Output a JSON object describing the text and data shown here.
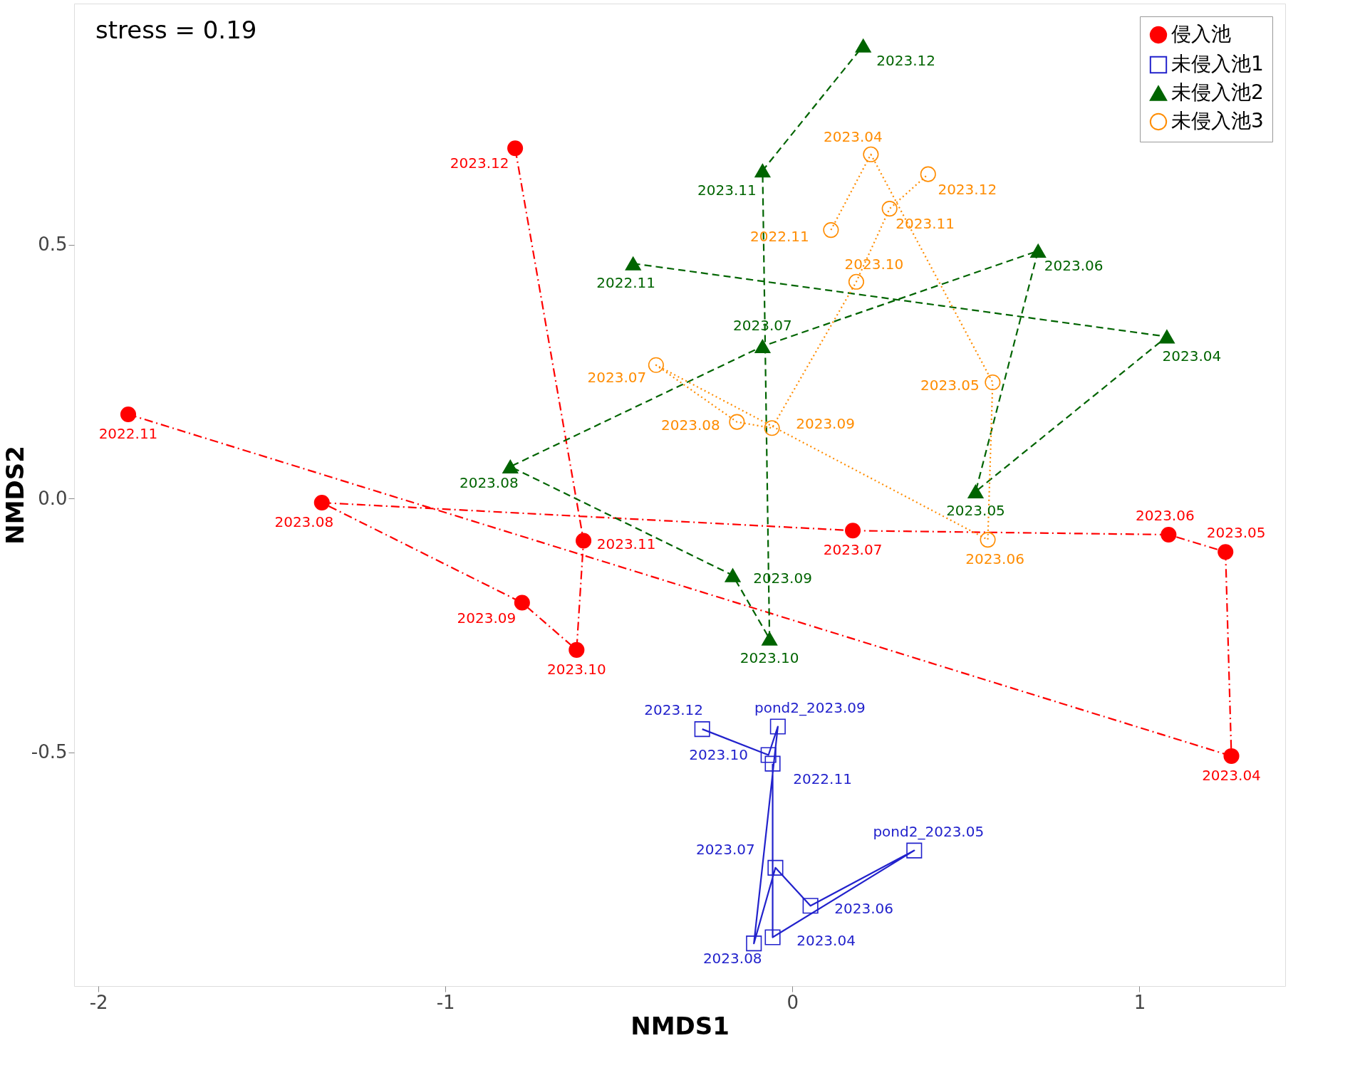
{
  "chart_data": {
    "type": "line",
    "xlabel": "NMDS1",
    "ylabel": "NMDS2",
    "annotations": [
      "stress = 0.19",
      {
        "text": "2022.11",
        "x": -1.914,
        "y": 0.166
      },
      {
        "text": "2023.04",
        "x": 1.265,
        "y": -0.507
      },
      {
        "text": "2023.05",
        "x": 1.248,
        "y": -0.105
      },
      {
        "text": "2023.06",
        "x": 1.084,
        "y": -0.071
      },
      {
        "text": "2023.07",
        "x": 0.174,
        "y": -0.063
      },
      {
        "text": "2023.08",
        "x": -1.356,
        "y": -0.008
      },
      {
        "text": "2023.09",
        "x": -0.779,
        "y": -0.205
      },
      {
        "text": "2023.10",
        "x": -0.622,
        "y": -0.298
      },
      {
        "text": "2023.11",
        "x": -0.602,
        "y": -0.083
      },
      {
        "text": "2023.12",
        "x": -0.799,
        "y": 0.69
      },
      {
        "text": "2022.11",
        "x": -0.057,
        "y": -0.522
      },
      {
        "text": "2023.04",
        "x": -0.057,
        "y": -0.864
      },
      {
        "text": "pond2_2023.05",
        "x": 0.351,
        "y": -0.693
      },
      {
        "text": "2023.06",
        "x": 0.052,
        "y": -0.802
      },
      {
        "text": "2023.07",
        "x": -0.049,
        "y": -0.727
      },
      {
        "text": "2023.08",
        "x": -0.111,
        "y": -0.876
      },
      {
        "text": "pond2_2023.09",
        "x": -0.042,
        "y": -0.449
      },
      {
        "text": "2023.10",
        "x": -0.069,
        "y": -0.505
      },
      {
        "text": "2023.12",
        "x": -0.26,
        "y": -0.454
      },
      {
        "text": "2022.11",
        "x": -0.459,
        "y": 0.463
      },
      {
        "text": "2023.04",
        "x": 1.079,
        "y": 0.319
      },
      {
        "text": "2023.05",
        "x": 0.528,
        "y": 0.014
      },
      {
        "text": "2023.06",
        "x": 0.708,
        "y": 0.488
      },
      {
        "text": "2023.07",
        "x": -0.086,
        "y": 0.3
      },
      {
        "text": "2023.08",
        "x": -0.813,
        "y": 0.063
      },
      {
        "text": "2023.09",
        "x": -0.172,
        "y": -0.151
      },
      {
        "text": "2023.10",
        "x": -0.066,
        "y": -0.276
      },
      {
        "text": "2023.11",
        "x": -0.086,
        "y": 0.646
      },
      {
        "text": "2023.12",
        "x": 0.204,
        "y": 0.892
      },
      {
        "text": "2022.11",
        "x": 0.111,
        "y": 0.529
      },
      {
        "text": "2023.04",
        "x": 0.226,
        "y": 0.678
      },
      {
        "text": "2023.05",
        "x": 0.577,
        "y": 0.229
      },
      {
        "text": "2023.06",
        "x": 0.563,
        "y": -0.081
      },
      {
        "text": "2023.07",
        "x": -0.393,
        "y": 0.263
      },
      {
        "text": "2023.08",
        "x": -0.16,
        "y": 0.151
      },
      {
        "text": "2023.09",
        "x": -0.059,
        "y": 0.139
      },
      {
        "text": "2023.10",
        "x": 0.184,
        "y": 0.427
      },
      {
        "text": "2023.11",
        "x": 0.28,
        "y": 0.571
      },
      {
        "text": "2023.12",
        "x": 0.391,
        "y": 0.639
      }
    ],
    "xlim": [
      -2.07,
      1.42
    ],
    "ylim": [
      -0.96,
      0.975
    ],
    "xticks": [
      -2,
      -1,
      0,
      1
    ],
    "yticks": [
      -0.5,
      {
        "value": 0,
        "label": "0.0"
      },
      0.5
    ],
    "grid": false,
    "legend": "top right",
    "series": [
      {
        "name": "侵入池",
        "color": "#ff0000",
        "marker": "circle",
        "line_style": "dashdot",
        "x": [
          -1.914,
          1.265,
          1.248,
          1.084,
          0.174,
          -1.356,
          -0.779,
          -0.622,
          -0.602,
          -0.799
        ],
        "values": [
          0.166,
          -0.507,
          -0.105,
          -0.071,
          -0.063,
          -0.008,
          -0.205,
          -0.298,
          -0.083,
          0.69
        ]
      },
      {
        "name": "未侵入池1",
        "color": "#2222cc",
        "marker": "square",
        "line_style": "solid",
        "x": [
          -0.057,
          -0.057,
          0.351,
          0.052,
          -0.049,
          -0.111,
          -0.042,
          -0.069,
          -0.26
        ],
        "values": [
          -0.522,
          -0.864,
          -0.693,
          -0.802,
          -0.727,
          -0.876,
          -0.449,
          -0.505,
          -0.454
        ]
      },
      {
        "name": "未侵入池2",
        "color": "#006400",
        "marker": "triangle",
        "line_style": "dashed",
        "x": [
          -0.459,
          1.079,
          0.528,
          0.708,
          -0.086,
          -0.813,
          -0.172,
          -0.066,
          -0.086,
          0.204
        ],
        "values": [
          0.463,
          0.319,
          0.014,
          0.488,
          0.3,
          0.063,
          -0.151,
          -0.276,
          0.646,
          0.892
        ]
      },
      {
        "name": "未侵入池3",
        "color": "#ff8c00",
        "marker": "circle",
        "line_style": "dotted",
        "x": [
          0.111,
          0.226,
          0.577,
          0.563,
          -0.393,
          -0.16,
          -0.059,
          0.184,
          0.28,
          0.391
        ],
        "values": [
          0.529,
          0.678,
          0.229,
          -0.081,
          0.263,
          0.151,
          0.139,
          0.427,
          0.571,
          0.639
        ]
      }
    ]
  }
}
